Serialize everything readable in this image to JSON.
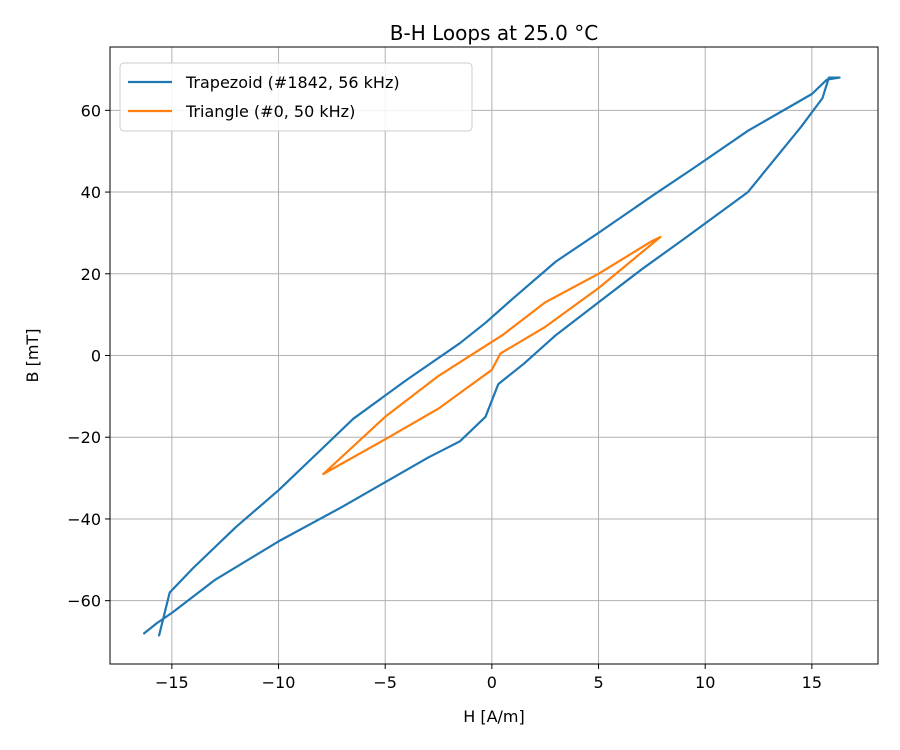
{
  "chart_data": {
    "type": "line",
    "title": "B-H Loops at 25.0 °C",
    "xlabel": "H [A/m]",
    "ylabel": "B [mT]",
    "xlim": [
      -17.9,
      18.1
    ],
    "ylim": [
      -75.5,
      75.5
    ],
    "xticks": [
      -15,
      -10,
      -5,
      0,
      5,
      10,
      15
    ],
    "xtick_labels": [
      "−15",
      "−10",
      "−5",
      "0",
      "5",
      "10",
      "15"
    ],
    "yticks": [
      -60,
      -40,
      -20,
      0,
      20,
      40,
      60
    ],
    "ytick_labels": [
      "−60",
      "−40",
      "−20",
      "0",
      "20",
      "40",
      "60"
    ],
    "grid": true,
    "legend_position": "top-left",
    "series": [
      {
        "name": "Trapezoid (#1842, 56 kHz)",
        "color": "#1f77b4",
        "x": [
          -16.3,
          -15.7,
          -15.0,
          -13.0,
          -10.0,
          -7.0,
          -5.0,
          -3.0,
          -1.5,
          -0.3,
          0.3,
          1.5,
          3.0,
          5.0,
          7.0,
          9.0,
          12.0,
          14.5,
          15.5,
          15.8,
          16.3,
          15.7,
          15.0,
          12.0,
          9.5,
          7.5,
          5.0,
          3.0,
          1.0,
          -0.3,
          -1.5,
          -4.0,
          -6.5,
          -8.0,
          -10.0,
          -12.0,
          -14.0,
          -15.1,
          -15.6
        ],
        "y": [
          -68.0,
          -65.5,
          -63.0,
          -55.0,
          -45.5,
          -37.0,
          -31.0,
          -25.0,
          -21.0,
          -15.0,
          -7.0,
          -2.0,
          5.0,
          13.0,
          21.0,
          28.5,
          40.0,
          56.0,
          63.0,
          68.0,
          68.0,
          67.5,
          64.0,
          55.0,
          46.0,
          39.0,
          30.0,
          23.0,
          14.0,
          8.0,
          3.0,
          -6.0,
          -15.5,
          -23.0,
          -33.0,
          -42.0,
          -52.0,
          -58.0,
          -68.5
        ]
      },
      {
        "name": "Triangle (#0, 50 kHz)",
        "color": "#ff7f0e",
        "x": [
          -7.9,
          -5.0,
          -2.5,
          0.0,
          0.4,
          2.5,
          5.0,
          7.9,
          7.5,
          5.0,
          2.5,
          0.5,
          -2.5,
          -5.0,
          -7.9
        ],
        "y": [
          -29.0,
          -20.5,
          -13.0,
          -3.5,
          0.5,
          7.0,
          16.5,
          29.0,
          28.0,
          20.0,
          13.0,
          5.0,
          -5.0,
          -15.0,
          -29.0
        ]
      }
    ]
  }
}
